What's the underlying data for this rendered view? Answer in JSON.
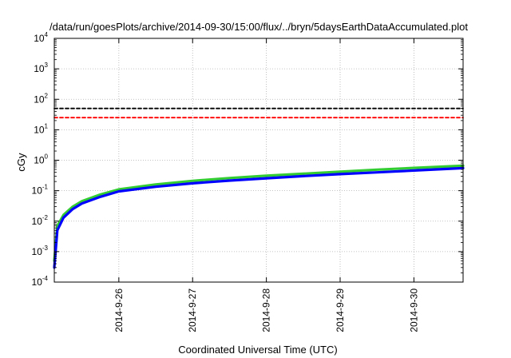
{
  "chart_data": {
    "type": "line",
    "title": "/data/run/goesPlots/archive/2014-09-30/15:00/flux/../bryn/5daysEarthDataAccumulated.plot",
    "xlabel": "Coordinated Universal Time (UTC)",
    "ylabel": "cGy",
    "y_scale": "log",
    "ylim": [
      0.0001,
      10000
    ],
    "xlim": [
      "2014-09-25 03:00",
      "2014-09-30 16:00"
    ],
    "y_ticks": [
      {
        "base": "10",
        "exp": "-4",
        "value": 0.0001
      },
      {
        "base": "10",
        "exp": "-3",
        "value": 0.001
      },
      {
        "base": "10",
        "exp": "-2",
        "value": 0.01
      },
      {
        "base": "10",
        "exp": "-1",
        "value": 0.1
      },
      {
        "base": "10",
        "exp": "0",
        "value": 1
      },
      {
        "base": "10",
        "exp": "1",
        "value": 10
      },
      {
        "base": "10",
        "exp": "2",
        "value": 100
      },
      {
        "base": "10",
        "exp": "3",
        "value": 1000
      },
      {
        "base": "10",
        "exp": "4",
        "value": 10000
      }
    ],
    "x_ticks": [
      {
        "label": "2014-9-26",
        "date": "2014-09-26 00:00"
      },
      {
        "label": "2014-9-27",
        "date": "2014-09-27 00:00"
      },
      {
        "label": "2014-9-28",
        "date": "2014-09-28 00:00"
      },
      {
        "label": "2014-9-29",
        "date": "2014-09-29 00:00"
      },
      {
        "label": "2014-9-30",
        "date": "2014-09-30 00:00"
      }
    ],
    "grid": true,
    "series": [
      {
        "color": "#000000",
        "style": "dashed",
        "points": [
          {
            "x": "2014-09-25 03:00",
            "y": 50
          },
          {
            "x": "2014-09-30 16:00",
            "y": 50
          }
        ]
      },
      {
        "color": "#ff0000",
        "style": "dashed",
        "points": [
          {
            "x": "2014-09-25 03:00",
            "y": 25
          },
          {
            "x": "2014-09-30 16:00",
            "y": 25
          }
        ]
      },
      {
        "color": "#33cc33",
        "style": "solid",
        "points": [
          {
            "x": "2014-09-25 03:00",
            "y": 0.0005
          },
          {
            "x": "2014-09-25 04:00",
            "y": 0.007
          },
          {
            "x": "2014-09-25 06:00",
            "y": 0.016
          },
          {
            "x": "2014-09-25 09:00",
            "y": 0.03
          },
          {
            "x": "2014-09-25 12:00",
            "y": 0.045
          },
          {
            "x": "2014-09-25 18:00",
            "y": 0.075
          },
          {
            "x": "2014-09-26 00:00",
            "y": 0.11
          },
          {
            "x": "2014-09-26 12:00",
            "y": 0.16
          },
          {
            "x": "2014-09-27 00:00",
            "y": 0.21
          },
          {
            "x": "2014-09-27 12:00",
            "y": 0.26
          },
          {
            "x": "2014-09-28 00:00",
            "y": 0.31
          },
          {
            "x": "2014-09-28 12:00",
            "y": 0.36
          },
          {
            "x": "2014-09-29 00:00",
            "y": 0.42
          },
          {
            "x": "2014-09-29 12:00",
            "y": 0.49
          },
          {
            "x": "2014-09-30 00:00",
            "y": 0.56
          },
          {
            "x": "2014-09-30 16:00",
            "y": 0.66
          }
        ]
      },
      {
        "color": "#0000ff",
        "style": "solid",
        "points": [
          {
            "x": "2014-09-25 03:00",
            "y": 0.0003
          },
          {
            "x": "2014-09-25 04:00",
            "y": 0.005
          },
          {
            "x": "2014-09-25 06:00",
            "y": 0.013
          },
          {
            "x": "2014-09-25 09:00",
            "y": 0.025
          },
          {
            "x": "2014-09-25 12:00",
            "y": 0.038
          },
          {
            "x": "2014-09-25 18:00",
            "y": 0.063
          },
          {
            "x": "2014-09-26 00:00",
            "y": 0.095
          },
          {
            "x": "2014-09-26 12:00",
            "y": 0.135
          },
          {
            "x": "2014-09-27 00:00",
            "y": 0.175
          },
          {
            "x": "2014-09-27 12:00",
            "y": 0.215
          },
          {
            "x": "2014-09-28 00:00",
            "y": 0.255
          },
          {
            "x": "2014-09-28 12:00",
            "y": 0.3
          },
          {
            "x": "2014-09-29 00:00",
            "y": 0.35
          },
          {
            "x": "2014-09-29 12:00",
            "y": 0.4
          },
          {
            "x": "2014-09-30 00:00",
            "y": 0.46
          },
          {
            "x": "2014-09-30 16:00",
            "y": 0.55
          }
        ]
      }
    ]
  }
}
